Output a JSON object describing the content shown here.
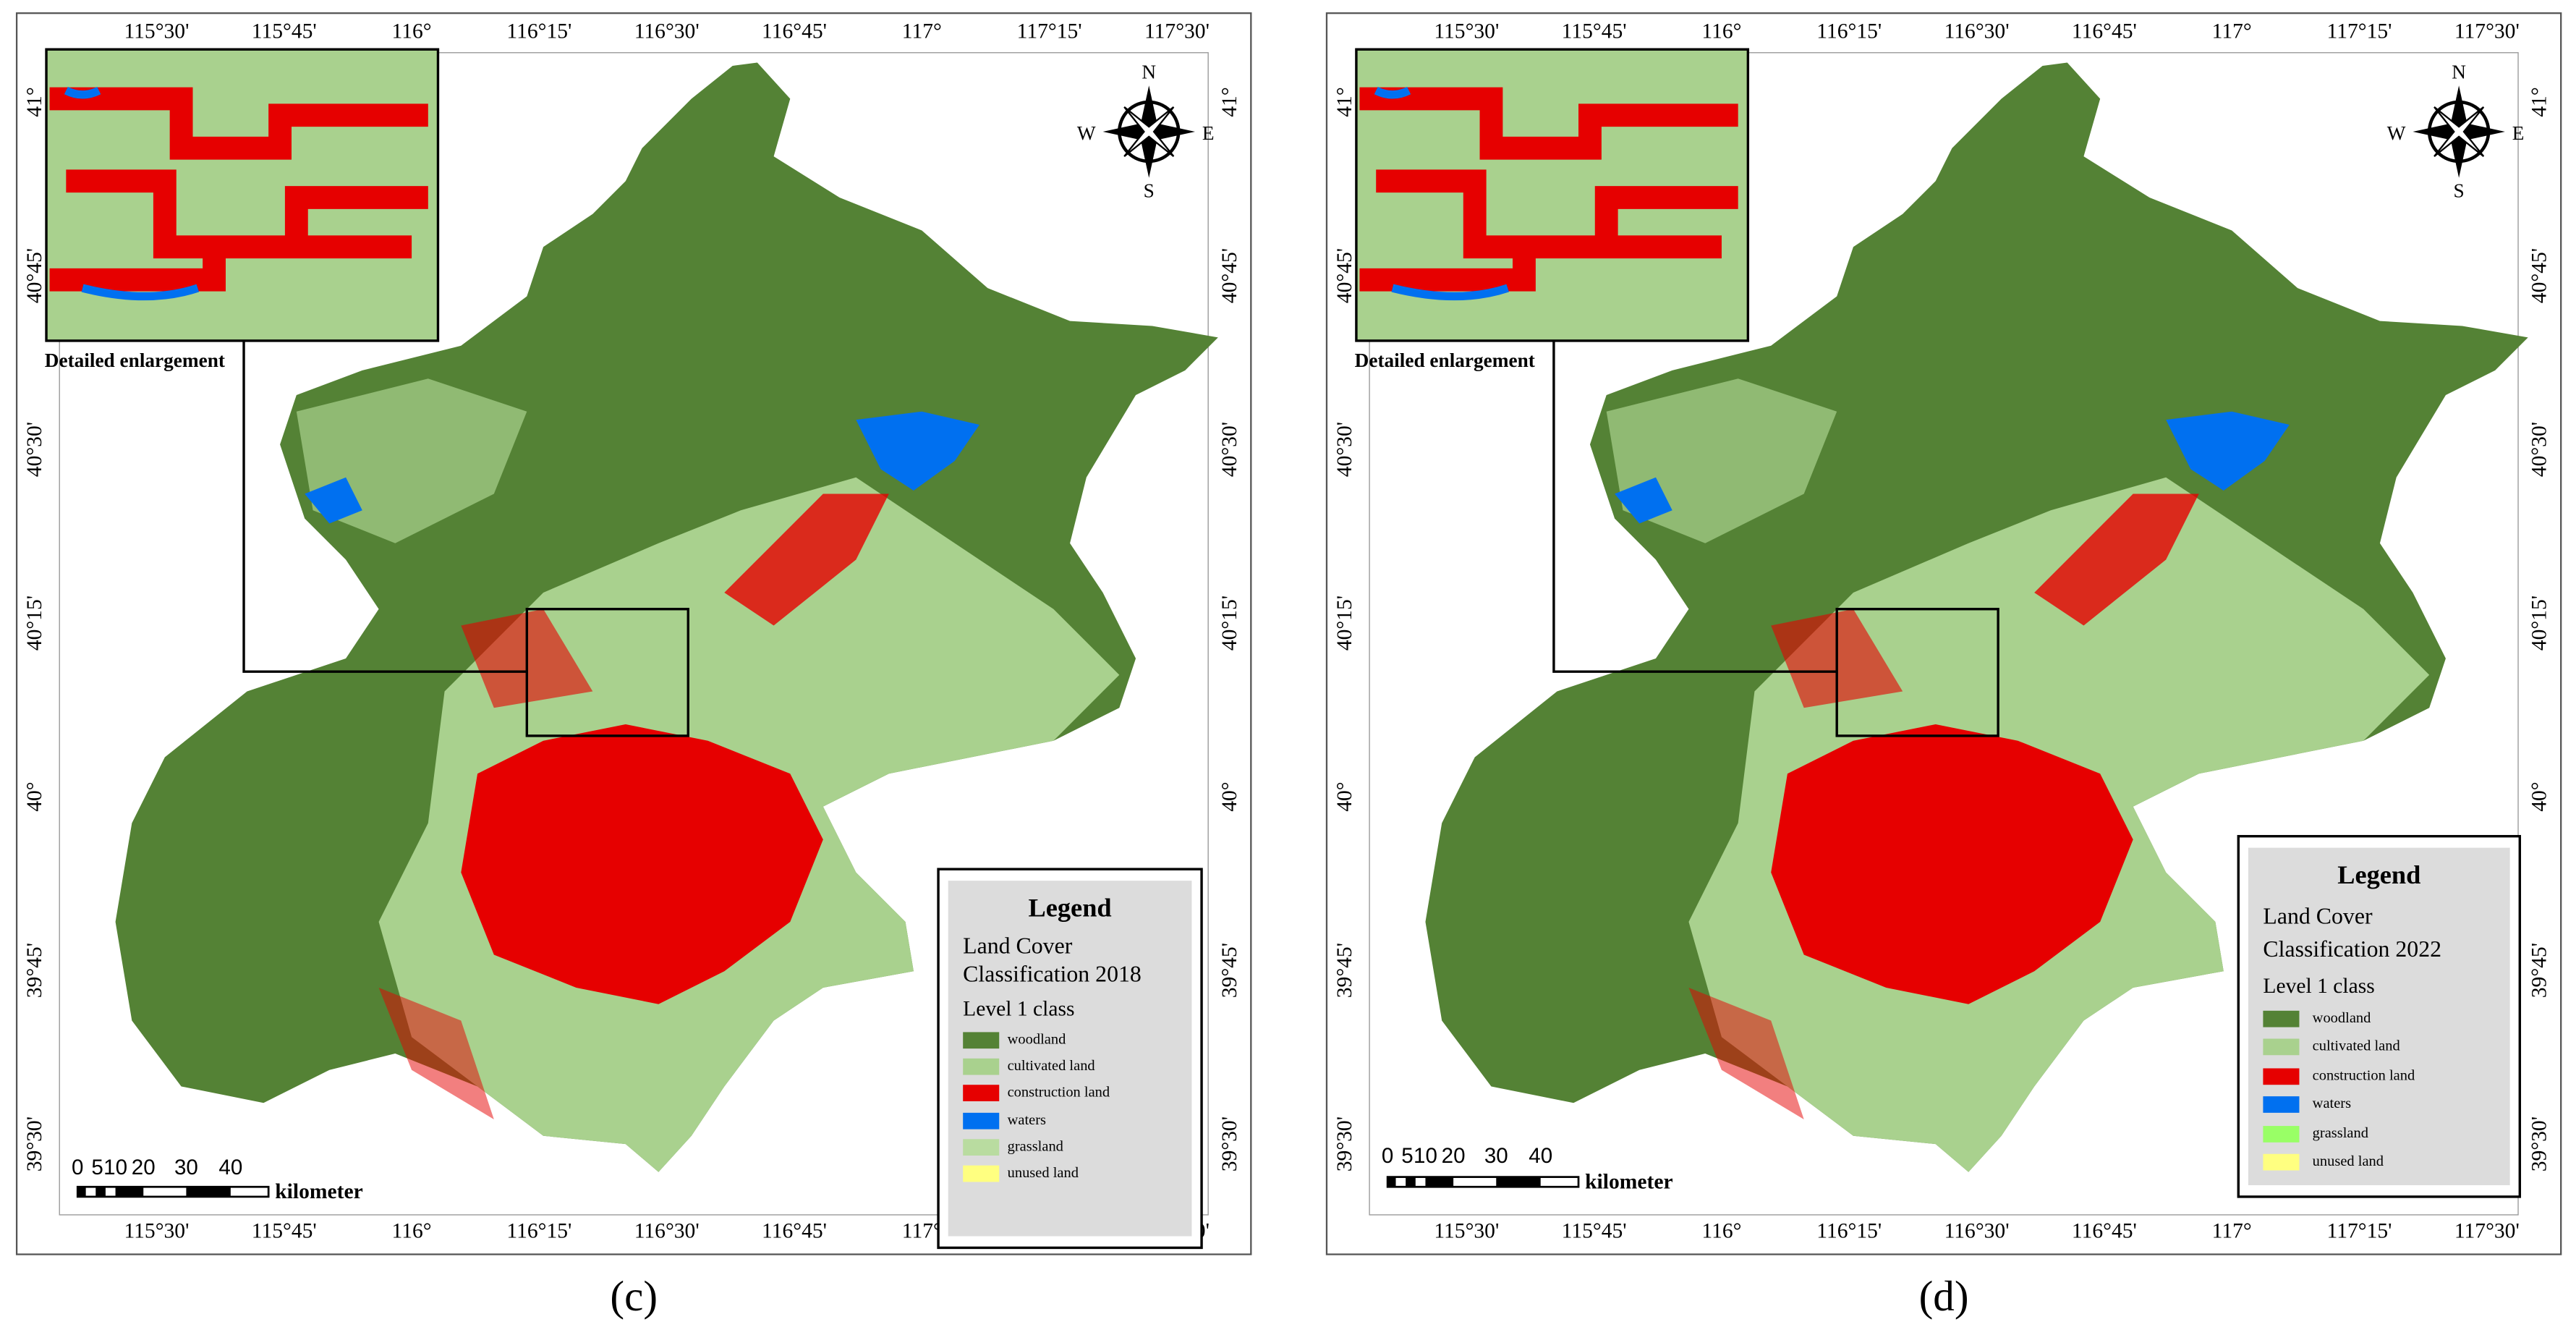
{
  "panels": [
    {
      "label": "(c)",
      "lon_ticks": [
        "115°30'",
        "115°45'",
        "116°",
        "116°15'",
        "116°30'",
        "116°45'",
        "117°",
        "117°15'",
        "117°30'"
      ],
      "lat_ticks": [
        "41°",
        "40°45'",
        "40°30'",
        "40°15'",
        "40°",
        "39°45'",
        "39°30'"
      ],
      "inset_caption": "Detailed enlargement",
      "compass": {
        "n": "N",
        "s": "S",
        "w": "W",
        "e": "E"
      },
      "legend": {
        "title": "Legend",
        "subtitle": [
          "Land Cover",
          "Classification 2018"
        ],
        "level": "Level 1 class",
        "items": [
          {
            "label": "woodland",
            "color": "#548235"
          },
          {
            "label": "cultivated land",
            "color": "#a9d18e"
          },
          {
            "label": "construction land",
            "color": "#e60000"
          },
          {
            "label": "waters",
            "color": "#0070f0"
          },
          {
            "label": "grassland",
            "color": "#b9dca0"
          },
          {
            "label": "unused land",
            "color": "#ffff80"
          }
        ]
      },
      "scale": {
        "ticks": [
          "0",
          "5",
          "10",
          "20",
          "30",
          "40"
        ],
        "unit": "kilometer"
      }
    },
    {
      "label": "(d)",
      "lon_ticks": [
        "115°30'",
        "115°45'",
        "116°",
        "116°15'",
        "116°30'",
        "116°45'",
        "117°",
        "117°15'",
        "117°30'"
      ],
      "lat_ticks": [
        "41°",
        "40°45'",
        "40°30'",
        "40°15'",
        "40°",
        "39°45'",
        "39°30'"
      ],
      "inset_caption": "Detailed enlargement",
      "compass": {
        "n": "N",
        "s": "S",
        "w": "W",
        "e": "E"
      },
      "legend": {
        "title": "Legend",
        "subtitle": [
          "Land Cover",
          "Classification 2022"
        ],
        "level": "Level 1 class",
        "items": [
          {
            "label": "woodland",
            "color": "#548235"
          },
          {
            "label": "cultivated land",
            "color": "#a9d18e"
          },
          {
            "label": "construction land",
            "color": "#e60000"
          },
          {
            "label": "waters",
            "color": "#0070f0"
          },
          {
            "label": "grassland",
            "color": "#99ff66"
          },
          {
            "label": "unused land",
            "color": "#ffff80"
          }
        ]
      },
      "scale": {
        "ticks": [
          "0",
          "5",
          "10",
          "20",
          "30",
          "40"
        ],
        "unit": "kilometer"
      }
    }
  ]
}
